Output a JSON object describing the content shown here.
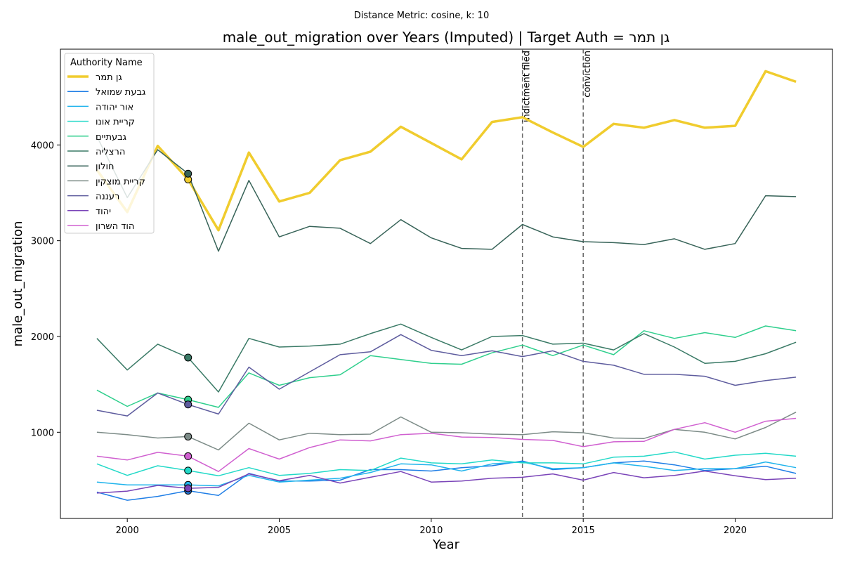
{
  "chart_data": {
    "type": "line",
    "suptitle": "Distance Metric: cosine, k: 10",
    "title": "male_out_migration over Years (Imputed) | Target Auth = גן תמר",
    "xlabel": "Year",
    "ylabel": "male_out_migration",
    "xlim": [
      1997.8,
      2023.2
    ],
    "ylim": [
      100,
      5000
    ],
    "xticks": [
      2000,
      2005,
      2010,
      2015,
      2020
    ],
    "yticks": [
      1000,
      2000,
      3000,
      4000
    ],
    "grid": false,
    "legend": {
      "title": "Authority Name",
      "position": "top-left"
    },
    "x": [
      1999,
      2000,
      2001,
      2002,
      2003,
      2004,
      2005,
      2006,
      2007,
      2008,
      2009,
      2010,
      2011,
      2012,
      2013,
      2014,
      2015,
      2016,
      2017,
      2018,
      2019,
      2020,
      2021,
      2022
    ],
    "imputed_year": 2002,
    "events": [
      {
        "year": 2013,
        "label": "indictment filed"
      },
      {
        "year": 2015,
        "label": "conviction"
      }
    ],
    "series": [
      {
        "name": "גן תמר",
        "color": "#f0cc2e",
        "width": 3.5,
        "values": [
          3740,
          3300,
          3990,
          3640,
          3110,
          3920,
          3410,
          3500,
          3840,
          3930,
          4190,
          4020,
          3850,
          4240,
          4290,
          4130,
          3980,
          4220,
          4180,
          4260,
          4180,
          4200,
          4770,
          4660
        ]
      },
      {
        "name": "גבעת שמואל",
        "color": "#1f7ee6",
        "width": 1.5,
        "values": [
          375,
          290,
          330,
          390,
          340,
          570,
          490,
          490,
          500,
          610,
          610,
          595,
          630,
          650,
          700,
          610,
          630,
          680,
          700,
          660,
          600,
          620,
          645,
          570
        ]
      },
      {
        "name": "אור יהודה",
        "color": "#20b4ec",
        "width": 1.5,
        "values": [
          480,
          450,
          450,
          450,
          440,
          550,
          480,
          500,
          520,
          580,
          670,
          660,
          595,
          670,
          690,
          620,
          630,
          680,
          645,
          600,
          620,
          620,
          690,
          630
        ]
      },
      {
        "name": "קריית אונו",
        "color": "#22d9c8",
        "width": 1.5,
        "values": [
          670,
          550,
          650,
          600,
          545,
          630,
          550,
          570,
          610,
          600,
          730,
          680,
          670,
          710,
          680,
          680,
          670,
          740,
          750,
          795,
          720,
          760,
          780,
          750
        ]
      },
      {
        "name": "גבעתיים",
        "color": "#2fcf8d",
        "width": 1.5,
        "values": [
          1440,
          1270,
          1410,
          1340,
          1260,
          1620,
          1490,
          1570,
          1600,
          1800,
          1760,
          1720,
          1710,
          1830,
          1910,
          1800,
          1910,
          1810,
          2060,
          1980,
          2040,
          1990,
          2110,
          2060
        ]
      },
      {
        "name": "הרצליה",
        "color": "#3a7a66",
        "width": 1.5,
        "values": [
          1980,
          1650,
          1920,
          1780,
          1420,
          1980,
          1890,
          1900,
          1920,
          2030,
          2130,
          1990,
          1860,
          2000,
          2010,
          1920,
          1930,
          1860,
          2030,
          1890,
          1720,
          1740,
          1820,
          1940
        ]
      },
      {
        "name": "חולון",
        "color": "#376358",
        "width": 1.5,
        "values": [
          4090,
          3450,
          3950,
          3700,
          2890,
          3630,
          3040,
          3150,
          3130,
          2970,
          3220,
          3030,
          2920,
          2910,
          3170,
          3040,
          2990,
          2980,
          2960,
          3020,
          2910,
          2970,
          3470,
          3460
        ]
      },
      {
        "name": "קריית מוצקין",
        "color": "#7c8b87",
        "width": 1.5,
        "values": [
          1000,
          975,
          940,
          955,
          815,
          1095,
          920,
          990,
          975,
          980,
          1160,
          1000,
          995,
          980,
          975,
          1005,
          995,
          940,
          935,
          1030,
          1000,
          930,
          1050,
          1210
        ]
      },
      {
        "name": "רעננה",
        "color": "#5e5c9e",
        "width": 1.5,
        "values": [
          1230,
          1170,
          1410,
          1290,
          1190,
          1680,
          1450,
          1630,
          1810,
          1840,
          2020,
          1855,
          1800,
          1850,
          1790,
          1850,
          1740,
          1700,
          1605,
          1605,
          1585,
          1490,
          1540,
          1575
        ]
      },
      {
        "name": "יהוד",
        "color": "#7a44b8",
        "width": 1.5,
        "values": [
          365,
          385,
          445,
          415,
          425,
          565,
          495,
          550,
          470,
          530,
          590,
          480,
          490,
          520,
          530,
          565,
          500,
          580,
          525,
          550,
          595,
          545,
          505,
          520
        ]
      },
      {
        "name": "הוד השרון",
        "color": "#d060d0",
        "width": 1.5,
        "values": [
          750,
          710,
          790,
          750,
          590,
          830,
          720,
          840,
          920,
          910,
          975,
          990,
          950,
          945,
          925,
          915,
          850,
          900,
          905,
          1030,
          1100,
          1000,
          1115,
          1145
        ]
      }
    ]
  }
}
